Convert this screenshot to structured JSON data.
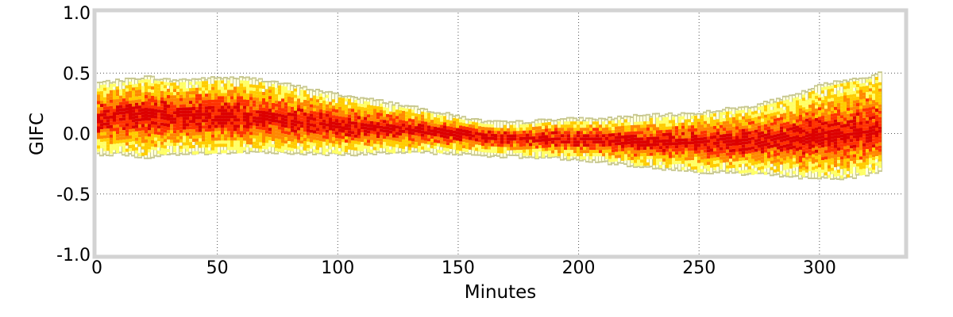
{
  "chart_data": {
    "type": "heatmap",
    "title": "",
    "xlabel": "Minutes",
    "ylabel": "GIFC",
    "xlim": [
      0,
      335
    ],
    "ylim": [
      -1.0,
      1.0
    ],
    "x_ticks": [
      0,
      50,
      100,
      150,
      200,
      250,
      300
    ],
    "x_tick_labels": [
      "0",
      "50",
      "100",
      "150",
      "200",
      "250",
      "300"
    ],
    "y_ticks": [
      1.0,
      0.5,
      0.0,
      -0.5,
      -1.0
    ],
    "y_tick_labels": [
      "1.0",
      "0.5",
      "0.0",
      "-0.5",
      "-1.0"
    ],
    "grid": true,
    "colormap": [
      "#ffff66",
      "#ffcc00",
      "#ff8800",
      "#ff3300",
      "#dd0000"
    ],
    "outline_color": "#c8c890",
    "x": [
      0,
      10,
      20,
      30,
      40,
      50,
      60,
      70,
      80,
      90,
      100,
      110,
      120,
      130,
      140,
      150,
      160,
      170,
      180,
      190,
      200,
      210,
      220,
      230,
      240,
      250,
      260,
      270,
      280,
      290,
      300,
      310,
      320,
      325
    ],
    "center": [
      0.12,
      0.15,
      0.16,
      0.15,
      0.15,
      0.14,
      0.13,
      0.12,
      0.1,
      0.08,
      0.06,
      0.05,
      0.04,
      0.03,
      0.02,
      0.0,
      -0.02,
      -0.03,
      -0.04,
      -0.05,
      -0.05,
      -0.06,
      -0.07,
      -0.08,
      -0.08,
      -0.07,
      -0.07,
      -0.06,
      -0.05,
      -0.04,
      -0.03,
      -0.02,
      0.0,
      0.02
    ],
    "upper": [
      0.4,
      0.42,
      0.45,
      0.42,
      0.43,
      0.44,
      0.44,
      0.42,
      0.38,
      0.34,
      0.3,
      0.27,
      0.24,
      0.2,
      0.16,
      0.12,
      0.08,
      0.07,
      0.08,
      0.1,
      0.1,
      0.1,
      0.12,
      0.13,
      0.14,
      0.15,
      0.18,
      0.2,
      0.25,
      0.3,
      0.38,
      0.42,
      0.45,
      0.48
    ],
    "lower": [
      -0.15,
      -0.15,
      -0.18,
      -0.15,
      -0.15,
      -0.14,
      -0.14,
      -0.13,
      -0.14,
      -0.15,
      -0.15,
      -0.15,
      -0.14,
      -0.14,
      -0.14,
      -0.15,
      -0.16,
      -0.17,
      -0.18,
      -0.18,
      -0.2,
      -0.22,
      -0.24,
      -0.26,
      -0.28,
      -0.3,
      -0.3,
      -0.32,
      -0.32,
      -0.34,
      -0.35,
      -0.35,
      -0.32,
      -0.28
    ]
  }
}
